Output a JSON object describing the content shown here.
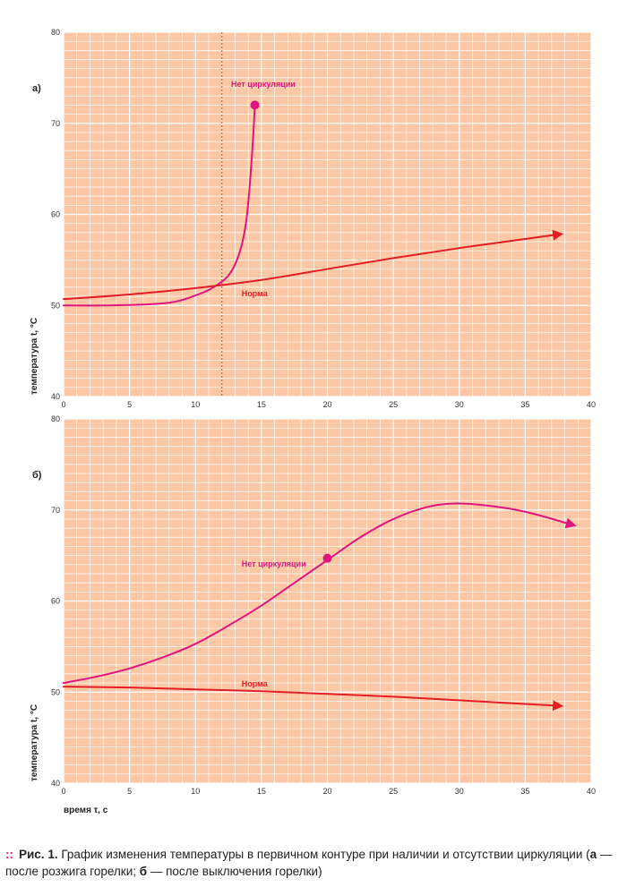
{
  "chart_data": [
    {
      "type": "line",
      "panel_label": "а)",
      "xlim": [
        0,
        40
      ],
      "ylim": [
        40,
        80
      ],
      "x_ticks": [
        0,
        5,
        10,
        15,
        20,
        25,
        30,
        35,
        40
      ],
      "y_ticks": [
        40,
        50,
        60,
        70,
        80
      ],
      "ylabel": "температура t, °С",
      "xlabel": "",
      "grid": true,
      "vertical_marker_x": 12,
      "series": [
        {
          "name": "Нет циркуляции",
          "color": "#e0157f",
          "x": [
            0,
            3,
            6,
            8,
            9,
            10,
            11,
            12,
            12.5,
            13,
            13.5,
            13.8,
            14,
            14.2,
            14.4,
            14.5
          ],
          "y": [
            50,
            50,
            50.1,
            50.3,
            50.6,
            51.1,
            51.7,
            52.6,
            53.3,
            54.5,
            56.6,
            58.8,
            61.3,
            64.8,
            69.2,
            72
          ],
          "end_marker": "dot"
        },
        {
          "name": "Норма",
          "color": "#e31e24",
          "x": [
            0,
            5,
            10,
            15,
            20,
            25,
            30,
            35,
            37.5
          ],
          "y": [
            50.7,
            51.2,
            51.9,
            52.8,
            54.0,
            55.2,
            56.3,
            57.3,
            57.8
          ],
          "end_marker": "arrow"
        }
      ],
      "annotations": [
        {
          "text": "Нет циркуляции",
          "x": 12.7,
          "y": 74,
          "color": "#e0157f"
        },
        {
          "text": "Норма",
          "x": 13.5,
          "y": 51,
          "color": "#e31e24"
        }
      ]
    },
    {
      "type": "line",
      "panel_label": "б)",
      "xlim": [
        0,
        40
      ],
      "ylim": [
        40,
        80
      ],
      "x_ticks": [
        0,
        5,
        10,
        15,
        20,
        25,
        30,
        35,
        40
      ],
      "y_ticks": [
        40,
        50,
        60,
        70,
        80
      ],
      "ylabel": "температура t, °С",
      "xlabel": "время τ, с",
      "grid": true,
      "series": [
        {
          "name": "Нет циркуляции",
          "color": "#e0157f",
          "x": [
            0,
            2.5,
            5,
            7.5,
            10,
            12.5,
            15,
            17.5,
            20,
            22.5,
            25,
            27.5,
            29.5,
            32,
            35,
            38.5
          ],
          "y": [
            51,
            51.7,
            52.6,
            53.8,
            55.3,
            57.3,
            59.5,
            62,
            64.5,
            67,
            69,
            70.3,
            70.7,
            70.5,
            69.8,
            68.4
          ],
          "highlight_point": {
            "x": 20,
            "y": 64.7
          },
          "end_marker": "arrow"
        },
        {
          "name": "Норма",
          "color": "#e31e24",
          "x": [
            0,
            5,
            10,
            15,
            20,
            25,
            30,
            35,
            37.5
          ],
          "y": [
            50.6,
            50.5,
            50.3,
            50.1,
            49.8,
            49.5,
            49.1,
            48.7,
            48.5
          ],
          "end_marker": "arrow"
        }
      ],
      "annotations": [
        {
          "text": "Нет циркуляции",
          "x": 13.5,
          "y": 63.8,
          "color": "#e0157f"
        },
        {
          "text": "Норма",
          "x": 13.5,
          "y": 50.6,
          "color": "#e31e24"
        }
      ]
    }
  ],
  "caption": {
    "dots": "::",
    "fig_label": "Рис. 1.",
    "text_1": " График изменения температуры в первичном контуре при наличии и отсутствии циркуляции (",
    "a": "а",
    "text_2": " — после розжига горелки; ",
    "b": "б",
    "text_3": " — после выключения горелки)"
  },
  "colors": {
    "plot_bg": "#fbc7a4",
    "grid_line": "#ffffff",
    "no_circ": "#e0157f",
    "norm": "#e31e24",
    "marker_line": "#e8632b"
  }
}
